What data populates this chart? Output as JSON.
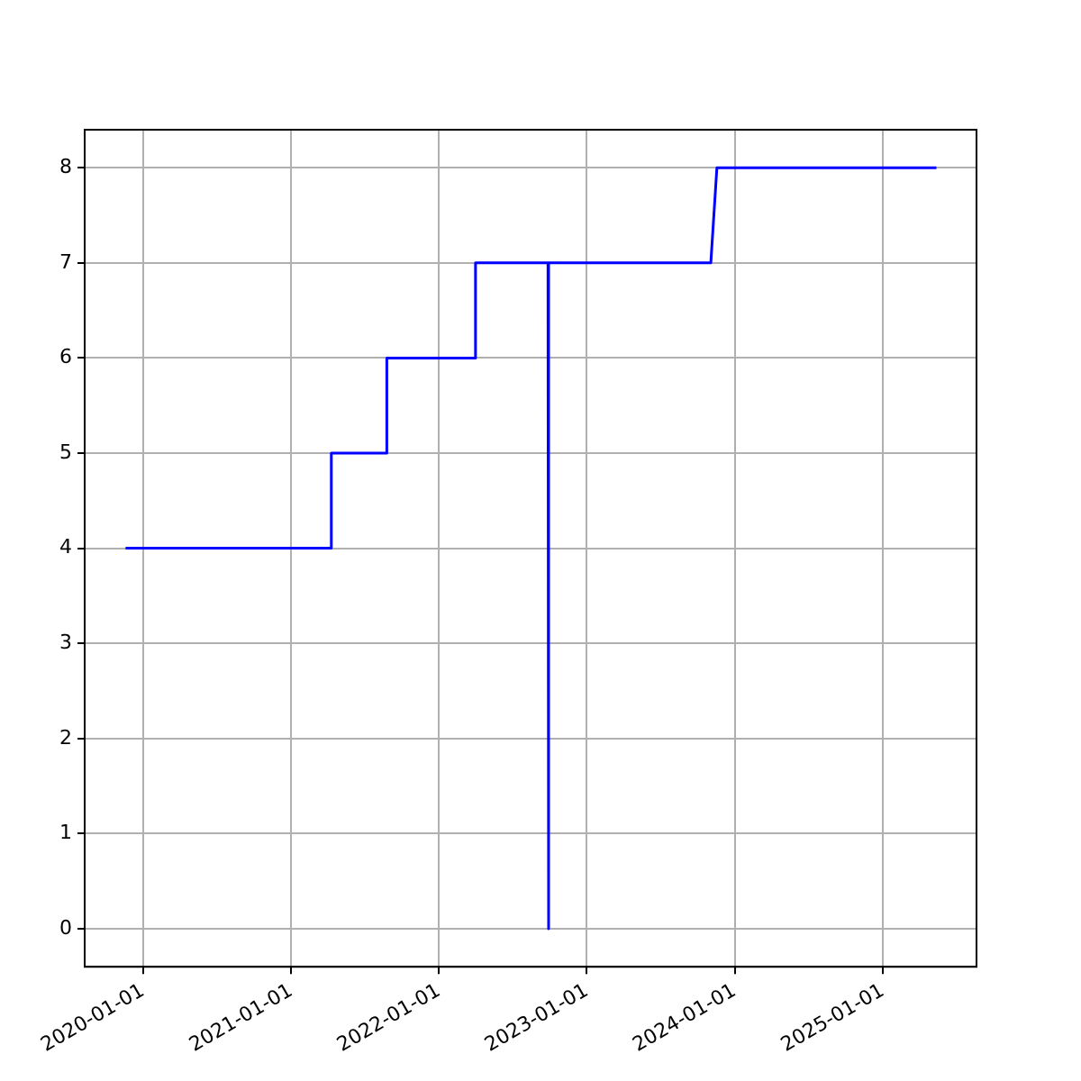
{
  "chart_data": {
    "type": "line",
    "x": [
      "2019-11-19",
      "2021-04-10",
      "2021-04-10",
      "2021-08-25",
      "2021-08-25",
      "2022-04-01",
      "2022-04-01",
      "2022-09-27",
      "2022-09-28",
      "2022-09-29",
      "2023-11-03",
      "2023-11-18",
      "2025-05-13"
    ],
    "series": [
      {
        "color": "#0000ff",
        "values": [
          4,
          4,
          5,
          5,
          6,
          6,
          7,
          7,
          0,
          7,
          7,
          8,
          8
        ]
      }
    ],
    "xlim": [
      "2019-08-10",
      "2025-08-20"
    ],
    "xticks": [
      {
        "value": "2020-01-01",
        "label": "2020-01-01"
      },
      {
        "value": "2021-01-01",
        "label": "2021-01-01"
      },
      {
        "value": "2022-01-01",
        "label": "2022-01-01"
      },
      {
        "value": "2023-01-01",
        "label": "2023-01-01"
      },
      {
        "value": "2024-01-01",
        "label": "2024-01-01"
      },
      {
        "value": "2025-01-01",
        "label": "2025-01-01"
      }
    ],
    "ylim": [
      -0.4,
      8.4
    ],
    "yticks": [
      0,
      1,
      2,
      3,
      4,
      5,
      6,
      7,
      8
    ],
    "grid": true,
    "legend": false,
    "marker": "none",
    "line_style": "solid"
  }
}
